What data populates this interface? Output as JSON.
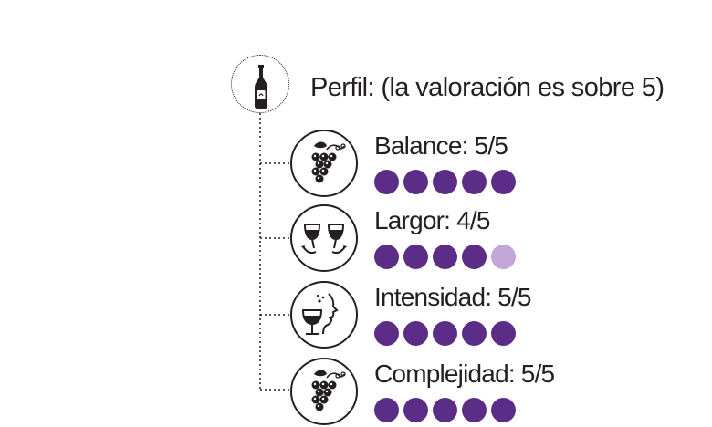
{
  "header": {
    "title": "Perfil:  (la valoración es sobre 5)"
  },
  "colors": {
    "filled": "#5b2d86",
    "empty": "#c2a6da",
    "ink": "#231f20"
  },
  "ratings": [
    {
      "label": "Balance: 5/5",
      "value": 5,
      "max": 5,
      "icon": "grapes-icon"
    },
    {
      "label": "Largor: 4/5",
      "value": 4,
      "max": 5,
      "icon": "wine-glasses-icon"
    },
    {
      "label": "Intensidad: 5/5",
      "value": 5,
      "max": 5,
      "icon": "wine-tasting-icon"
    },
    {
      "label": "Complejidad: 5/5",
      "value": 5,
      "max": 5,
      "icon": "grapes-icon"
    }
  ]
}
